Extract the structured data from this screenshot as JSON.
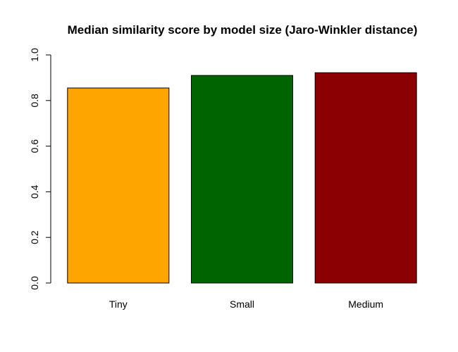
{
  "chart_data": {
    "type": "bar",
    "title": "Median similarity score by model size (Jaro-Winkler distance)",
    "xlabel": "",
    "ylabel": "",
    "categories": [
      "Tiny",
      "Small",
      "Medium"
    ],
    "values": [
      0.855,
      0.91,
      0.922
    ],
    "colors": [
      "#FFA500",
      "#006400",
      "#8B0000"
    ],
    "bar_border_color": "#000000",
    "ylim": [
      0,
      1
    ],
    "yticks": [
      "0.0",
      "0.2",
      "0.4",
      "0.6",
      "0.8",
      "1.0"
    ],
    "grid": false,
    "legend": "none"
  }
}
